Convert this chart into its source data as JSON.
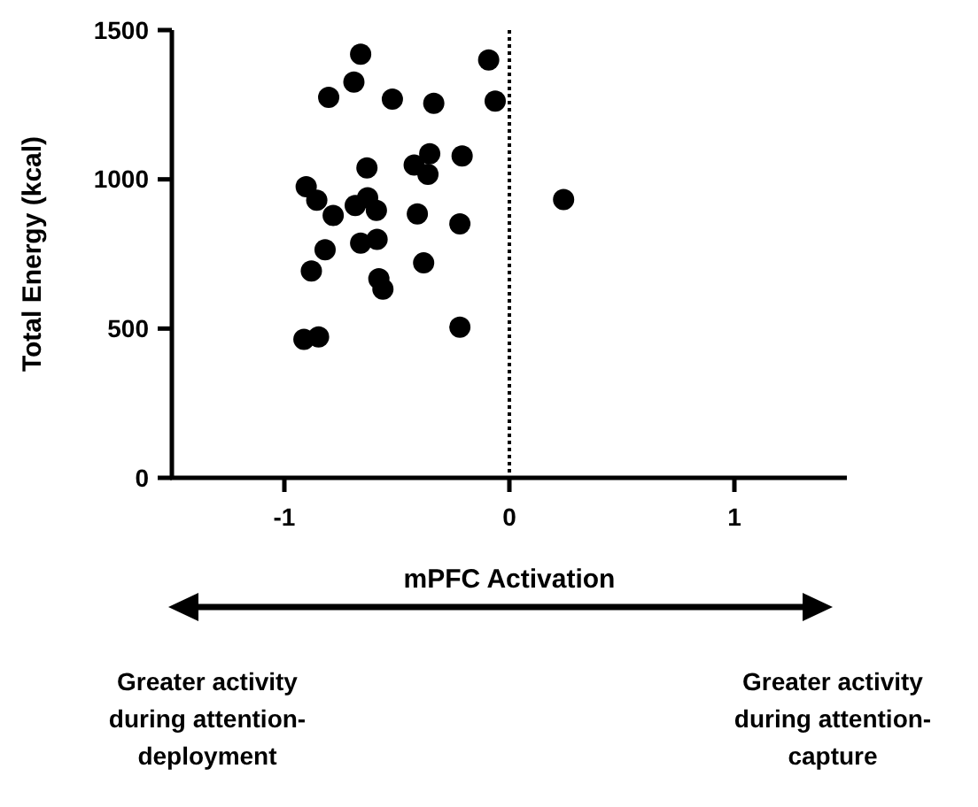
{
  "chart_data": {
    "type": "scatter",
    "xlabel": "mPFC Activation",
    "ylabel": "Total Energy (kcal)",
    "x": [
      -0.661,
      -0.092,
      -0.691,
      -0.803,
      -0.52,
      -0.336,
      -0.063,
      0.241,
      -0.354,
      -0.21,
      -0.423,
      -0.362,
      -0.633,
      -0.903,
      -0.856,
      -0.783,
      -0.685,
      -0.63,
      -0.591,
      -0.409,
      -0.22,
      -0.819,
      -0.661,
      -0.588,
      -0.381,
      -0.88,
      -0.58,
      -0.562,
      -0.22,
      -0.913,
      -0.848
    ],
    "values": [
      1419,
      1400,
      1326,
      1275,
      1269,
      1255,
      1262,
      932,
      1086,
      1078,
      1048,
      1017,
      1038,
      975,
      930,
      879,
      912,
      938,
      896,
      884,
      851,
      764,
      786,
      799,
      720,
      693,
      667,
      632,
      505,
      464,
      472
    ],
    "color": "#000000",
    "marker": "circle",
    "xlim": [
      -1.5,
      1.5
    ],
    "xticks": [
      -1,
      0,
      1
    ],
    "ylim": [
      0,
      1500
    ],
    "yticks": [
      0,
      500,
      1000,
      1500
    ],
    "grid": false,
    "ref_lines": [
      {
        "axis": "x",
        "value": 0,
        "line_style": "dotted",
        "color": "#000000"
      }
    ],
    "annotations": [
      "Greater activity\nduring attention-\ndeployment",
      "Greater activity\nduring attention-\ncapture"
    ]
  }
}
